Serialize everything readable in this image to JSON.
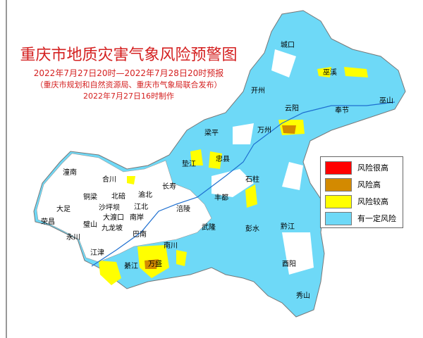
{
  "title": "重庆市地质灾害气象风险预警图",
  "period": "2022年7月27日20时—2022年7月28日20时预报",
  "issuer": "（重庆市规划和自然资源局、重庆市气象局联合发布）",
  "made": "2022年7月27日16时制作",
  "legend": [
    {
      "label": "风险很高",
      "color": "#ff0000"
    },
    {
      "label": "风险高",
      "color": "#d38a00"
    },
    {
      "label": "风险较高",
      "color": "#ffff00"
    },
    {
      "label": "有一定风险",
      "color": "#6ed9f7"
    }
  ],
  "districts": [
    "城口",
    "巫溪",
    "开州",
    "云阳",
    "奉节",
    "巫山",
    "梁平",
    "万州",
    "垫江",
    "忠县",
    "石柱",
    "丰都",
    "长寿",
    "涪陵",
    "武隆",
    "彭水",
    "黔江",
    "酉阳",
    "秀山",
    "南川",
    "万盛",
    "綦江",
    "江津",
    "巴南",
    "九龙坡",
    "大渡口",
    "南岸",
    "江北",
    "沙坪坝",
    "璧山",
    "永川",
    "荣昌",
    "大足",
    "铜梁",
    "合川",
    "潼南",
    "北碚",
    "渝北"
  ]
}
